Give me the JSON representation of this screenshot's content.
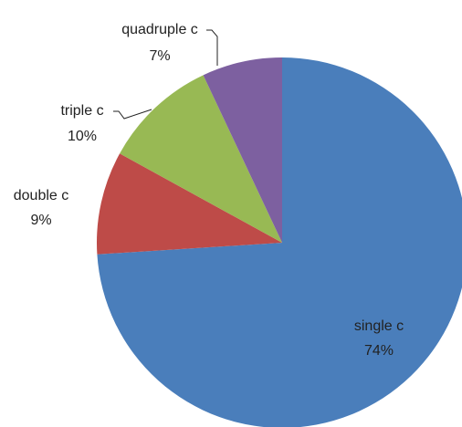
{
  "chart_data": {
    "type": "pie",
    "categories": [
      "single c",
      "double c",
      "triple c",
      "quadruple c"
    ],
    "values": [
      74,
      9,
      10,
      7
    ],
    "value_labels": [
      "74%",
      "9%",
      "10%",
      "7%"
    ],
    "colors": [
      "#4a7ebb",
      "#be4b48",
      "#98b954",
      "#7d60a0"
    ]
  }
}
